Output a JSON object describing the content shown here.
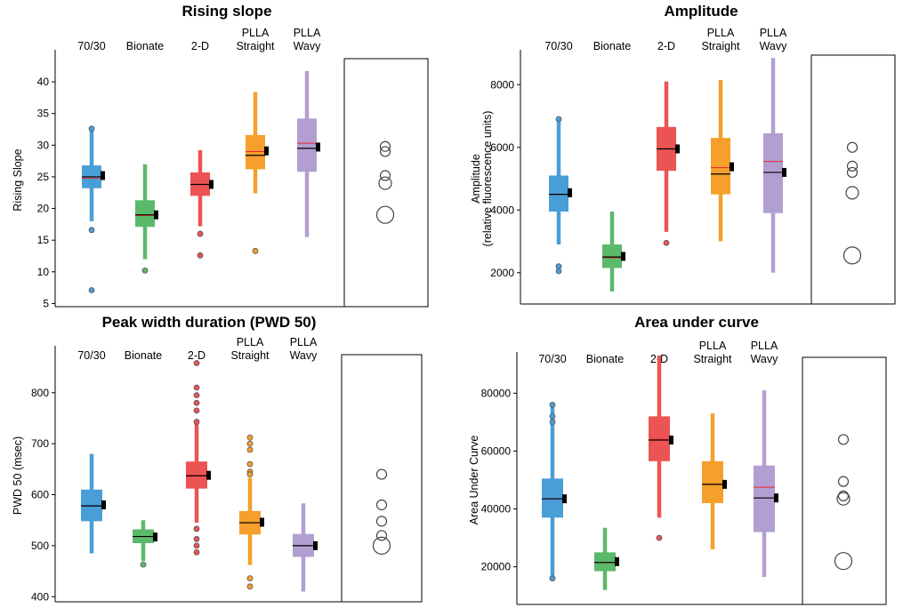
{
  "chart_data": [
    {
      "type": "box",
      "title": "Rising slope",
      "ylabel": "Rising Slope",
      "ylim": [
        4.5,
        44.5
      ],
      "yticks": [
        5,
        10,
        15,
        20,
        25,
        30,
        35,
        40
      ],
      "categories": [
        "70/30",
        "Bionate",
        "2-D",
        "PLLA\nStraight",
        "PLLA\nWavy"
      ],
      "colors": [
        "#4a9ed8",
        "#5bb96a",
        "#ec5353",
        "#f5a02c",
        "#b29fd2"
      ],
      "boxes": [
        {
          "whisker_low": 18,
          "q1": 23.2,
          "median": 25,
          "mean": 24.8,
          "q3": 26.8,
          "whisker_high": 32.5,
          "mean_marker": 25.2,
          "outliers": [
            32.6,
            16.6,
            7.1
          ]
        },
        {
          "whisker_low": 12,
          "q1": 17.1,
          "median": 19,
          "mean": 18.9,
          "q3": 21.3,
          "whisker_high": 27,
          "mean_marker": 19,
          "outliers": [
            10.2
          ]
        },
        {
          "whisker_low": 17.2,
          "q1": 22,
          "median": 23.8,
          "mean": 23.8,
          "q3": 25.7,
          "whisker_high": 29.2,
          "mean_marker": 23.8,
          "outliers": [
            16,
            12.6
          ]
        },
        {
          "whisker_low": 22.4,
          "q1": 26.2,
          "median": 28.4,
          "mean": 29,
          "q3": 31.6,
          "whisker_high": 38.4,
          "mean_marker": 29.1,
          "outliers": [
            13.3
          ]
        },
        {
          "whisker_low": 15.5,
          "q1": 25.8,
          "median": 29.5,
          "mean": 30.3,
          "q3": 34.2,
          "whisker_high": 41.7,
          "mean_marker": 29.7,
          "outliers": []
        }
      ],
      "legend_circles": [
        29.8,
        29,
        25.2,
        24,
        19
      ]
    },
    {
      "type": "box",
      "title": "Amplitude",
      "ylabel": "Amplitude",
      "ylabel2": "(relative fluorescence units)",
      "ylim": [
        1000,
        9000
      ],
      "yticks": [
        2000,
        4000,
        6000,
        8000
      ],
      "categories": [
        "70/30",
        "Bionate",
        "2-D",
        "PLLA\nStraight",
        "PLLA\nWavy"
      ],
      "colors": [
        "#4a9ed8",
        "#5bb96a",
        "#ec5353",
        "#f5a02c",
        "#b29fd2"
      ],
      "boxes": [
        {
          "whisker_low": 2900,
          "q1": 3950,
          "median": 4500,
          "mean": 4500,
          "q3": 5100,
          "whisker_high": 6900,
          "mean_marker": 4550,
          "outliers": [
            6900,
            2200,
            2050
          ]
        },
        {
          "whisker_low": 1400,
          "q1": 2150,
          "median": 2500,
          "mean": 2480,
          "q3": 2900,
          "whisker_high": 3950,
          "mean_marker": 2520,
          "outliers": []
        },
        {
          "whisker_low": 3300,
          "q1": 5250,
          "median": 5950,
          "mean": 5950,
          "q3": 6650,
          "whisker_high": 8100,
          "mean_marker": 5950,
          "outliers": [
            2950
          ]
        },
        {
          "whisker_low": 3000,
          "q1": 4500,
          "median": 5150,
          "mean": 5350,
          "q3": 6300,
          "whisker_high": 8150,
          "mean_marker": 5380,
          "outliers": []
        },
        {
          "whisker_low": 2000,
          "q1": 3900,
          "median": 5200,
          "mean": 5550,
          "q3": 6450,
          "whisker_high": 8850,
          "mean_marker": 5200,
          "outliers": []
        }
      ],
      "legend_circles": [
        6000,
        5400,
        5200,
        4550,
        2550
      ]
    },
    {
      "type": "box",
      "title": "Peak width duration (PWD 50)",
      "ylabel": "PWD 50 (msec)",
      "ylim": [
        390,
        885
      ],
      "yticks": [
        400,
        500,
        600,
        700,
        800
      ],
      "categories": [
        "70/30",
        "Bionate",
        "2-D",
        "PLLA\nStraight",
        "PLLA\nWavy"
      ],
      "colors": [
        "#4a9ed8",
        "#5bb96a",
        "#ec5353",
        "#f5a02c",
        "#b29fd2"
      ],
      "boxes": [
        {
          "whisker_low": 485,
          "q1": 548,
          "median": 578,
          "mean": 578,
          "q3": 610,
          "whisker_high": 680,
          "mean_marker": 580,
          "outliers": []
        },
        {
          "whisker_low": 470,
          "q1": 505,
          "median": 518,
          "mean": 518,
          "q3": 532,
          "whisker_high": 550,
          "mean_marker": 517,
          "outliers": [
            463
          ]
        },
        {
          "whisker_low": 545,
          "q1": 612,
          "median": 637,
          "mean": 637,
          "q3": 665,
          "whisker_high": 742,
          "mean_marker": 638,
          "outliers": [
            858,
            810,
            795,
            780,
            765,
            743,
            533,
            513,
            500,
            487
          ]
        },
        {
          "whisker_low": 462,
          "q1": 522,
          "median": 545,
          "mean": 545,
          "q3": 568,
          "whisker_high": 633,
          "mean_marker": 546,
          "outliers": [
            712,
            700,
            688,
            660,
            645,
            640,
            436,
            420
          ]
        },
        {
          "whisker_low": 410,
          "q1": 478,
          "median": 500,
          "mean": 500,
          "q3": 523,
          "whisker_high": 583,
          "mean_marker": 500,
          "outliers": []
        }
      ],
      "legend_circles": [
        640,
        580,
        548,
        520,
        500
      ]
    },
    {
      "type": "box",
      "title": "Area under curve",
      "ylabel": "Area Under Curve",
      "ylim": [
        7000,
        93000
      ],
      "yticks": [
        20000,
        40000,
        60000,
        80000
      ],
      "categories": [
        "70/30",
        "Bionate",
        "2-D",
        "PLLA\nStraight",
        "PLLA\nWavy"
      ],
      "colors": [
        "#4a9ed8",
        "#5bb96a",
        "#ec5353",
        "#f5a02c",
        "#b29fd2"
      ],
      "boxes": [
        {
          "whisker_low": 17000,
          "q1": 37000,
          "median": 43500,
          "mean": 43500,
          "q3": 50500,
          "whisker_high": 76000,
          "mean_marker": 43500,
          "outliers": [
            76000,
            72000,
            70000,
            16000
          ]
        },
        {
          "whisker_low": 12000,
          "q1": 18500,
          "median": 21500,
          "mean": 21500,
          "q3": 25000,
          "whisker_high": 33500,
          "mean_marker": 21800,
          "outliers": []
        },
        {
          "whisker_low": 37000,
          "q1": 56500,
          "median": 63800,
          "mean": 64000,
          "q3": 72000,
          "whisker_high": 93000,
          "mean_marker": 63800,
          "outliers": [
            30000
          ]
        },
        {
          "whisker_low": 26000,
          "q1": 42000,
          "median": 48500,
          "mean": 48500,
          "q3": 56500,
          "whisker_high": 73000,
          "mean_marker": 48500,
          "outliers": []
        },
        {
          "whisker_low": 16500,
          "q1": 32000,
          "median": 43800,
          "mean": 47500,
          "q3": 55000,
          "whisker_high": 81000,
          "mean_marker": 43800,
          "outliers": []
        }
      ],
      "legend_circles": [
        64000,
        49500,
        44500,
        43500,
        22000
      ]
    }
  ]
}
